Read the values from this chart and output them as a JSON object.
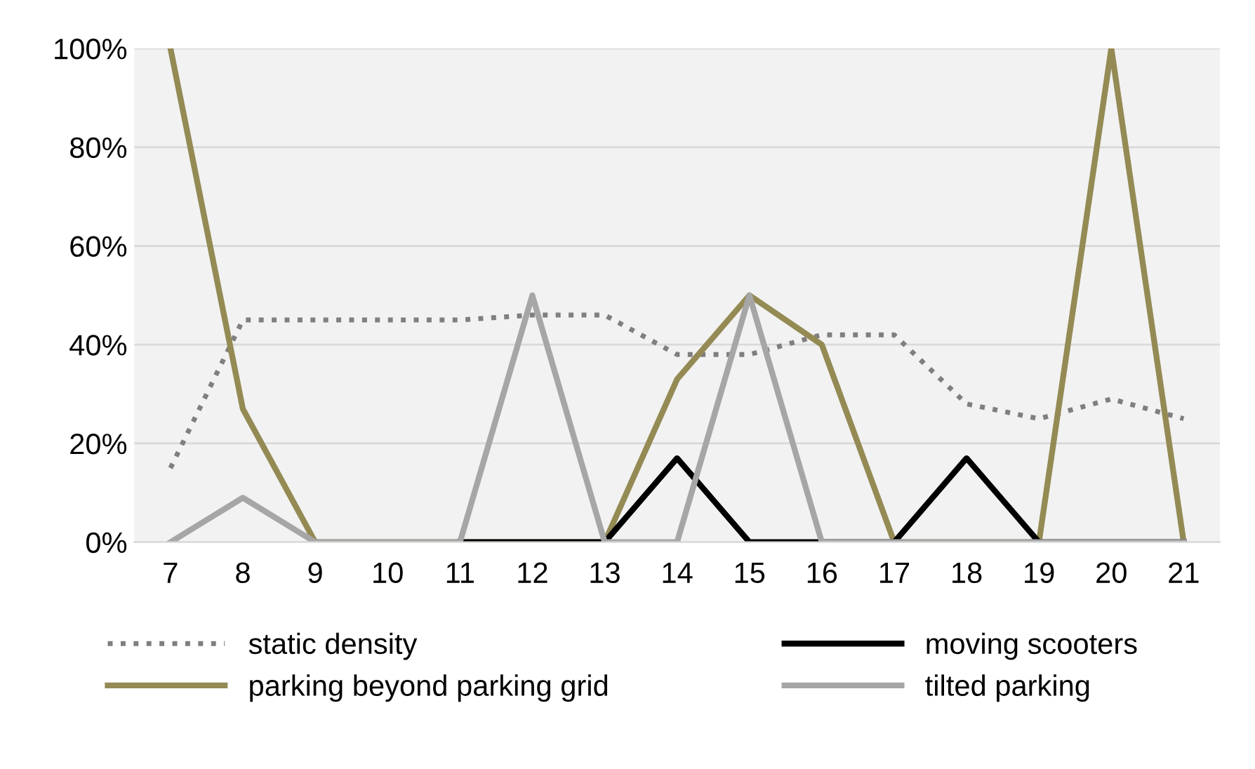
{
  "chart_data": {
    "type": "line",
    "categories": [
      "7",
      "8",
      "9",
      "10",
      "11",
      "12",
      "13",
      "14",
      "15",
      "16",
      "17",
      "18",
      "19",
      "20",
      "21"
    ],
    "series": [
      {
        "name": "static density",
        "color": "#7f7f7f",
        "line_style": "dotted",
        "values": [
          15,
          45,
          45,
          45,
          45,
          46,
          46,
          38,
          38,
          42,
          42,
          28,
          25,
          29,
          25
        ]
      },
      {
        "name": "parking beyond parking grid",
        "color": "#948a54",
        "line_style": "solid",
        "values": [
          100,
          27,
          0,
          0,
          0,
          0,
          0,
          33,
          50,
          40,
          0,
          0,
          0,
          100,
          0
        ]
      },
      {
        "name": "moving scooters",
        "color": "#000000",
        "line_style": "solid",
        "values": [
          null,
          null,
          null,
          null,
          0,
          0,
          0,
          17,
          0,
          0,
          0,
          17,
          0,
          0,
          0
        ]
      },
      {
        "name": "tilted parking",
        "color": "#a6a6a6",
        "line_style": "solid",
        "values": [
          0,
          9,
          0,
          0,
          0,
          50,
          0,
          0,
          50,
          0,
          0,
          0,
          0,
          0,
          0
        ]
      }
    ],
    "ylim": [
      0,
      100
    ],
    "yticks": [
      {
        "value": 0,
        "label": "0%"
      },
      {
        "value": 20,
        "label": "20%"
      },
      {
        "value": 40,
        "label": "40%"
      },
      {
        "value": 60,
        "label": "60%"
      },
      {
        "value": 80,
        "label": "80%"
      },
      {
        "value": 100,
        "label": "100%"
      }
    ],
    "grid": "y",
    "legend": "bottom",
    "marker": "none"
  }
}
